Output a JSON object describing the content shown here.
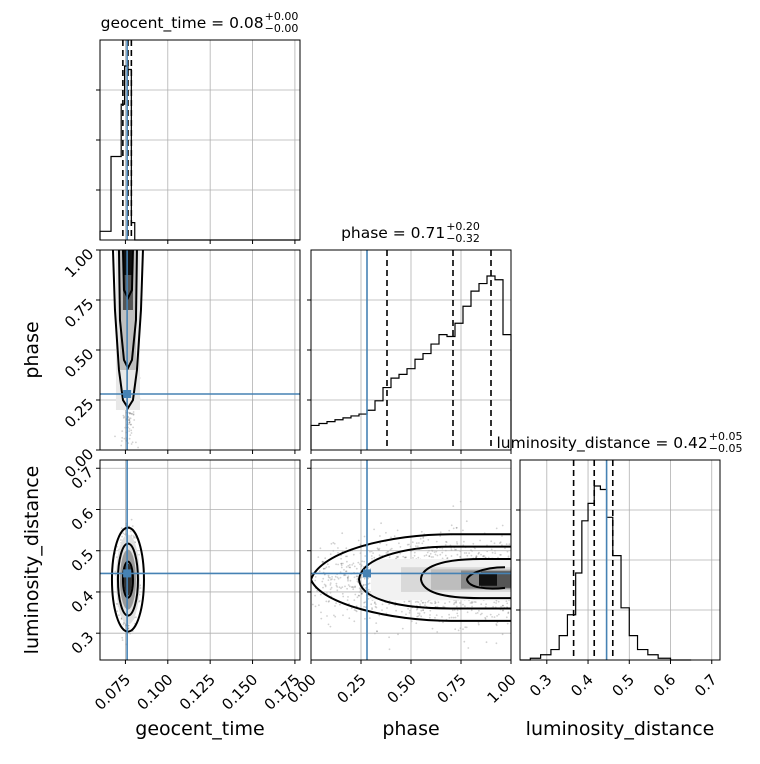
{
  "chart_data": {
    "type": "corner",
    "parameters": [
      "geocent_time",
      "phase",
      "luminosity_distance"
    ],
    "truths": {
      "geocent_time": 0.076,
      "phase": 0.28,
      "luminosity_distance": 0.445
    },
    "titles": [
      {
        "param": "geocent_time",
        "text": "geocent_time = 0.08",
        "sup": "+0.00",
        "sub": "−0.00"
      },
      {
        "param": "phase",
        "text": "phase = 0.71",
        "sup": "+0.20",
        "sub": "−0.32"
      },
      {
        "param": "luminosity_distance",
        "text": "luminosity_distance = 0.42",
        "sup": "+0.05",
        "sub": "−0.05"
      }
    ],
    "quantiles": {
      "geocent_time": [
        0.0735,
        0.0765,
        0.0785
      ],
      "phase": [
        0.38,
        0.71,
        0.9
      ],
      "luminosity_distance": [
        0.365,
        0.415,
        0.46
      ]
    },
    "axes": {
      "geocent_time": {
        "range": [
          0.06,
          0.178
        ],
        "ticks": [
          "0.075",
          "0.100",
          "0.125",
          "0.150",
          "0.175"
        ],
        "tickvals": [
          0.075,
          0.1,
          0.125,
          0.15,
          0.175
        ]
      },
      "phase": {
        "range": [
          0.0,
          1.0
        ],
        "ticks": [
          "0.00",
          "0.25",
          "0.50",
          "0.75",
          "1.00"
        ],
        "tickvals": [
          0,
          0.25,
          0.5,
          0.75,
          1.0
        ]
      },
      "luminosity_distance": {
        "range": [
          0.235,
          0.72
        ],
        "ticks": [
          "0.3",
          "0.4",
          "0.5",
          "0.6",
          "0.7"
        ],
        "tickvals": [
          0.3,
          0.4,
          0.5,
          0.6,
          0.7
        ]
      }
    },
    "histograms": {
      "geocent_time": {
        "bin_edges": [
          0.06,
          0.0665,
          0.0725,
          0.0745,
          0.0765,
          0.0785,
          0.0805,
          0.178
        ],
        "counts": [
          0.05,
          0.48,
          0.78,
          1.0,
          0.98,
          0.1,
          0.0
        ]
      },
      "phase": {
        "bin_edges": [
          0.0,
          0.04,
          0.08,
          0.12,
          0.16,
          0.2,
          0.24,
          0.28,
          0.32,
          0.36,
          0.4,
          0.44,
          0.48,
          0.52,
          0.56,
          0.6,
          0.64,
          0.68,
          0.72,
          0.76,
          0.8,
          0.84,
          0.88,
          0.92,
          0.96,
          1.0
        ],
        "counts": [
          0.13,
          0.14,
          0.15,
          0.16,
          0.17,
          0.18,
          0.19,
          0.21,
          0.26,
          0.33,
          0.38,
          0.4,
          0.43,
          0.48,
          0.51,
          0.56,
          0.61,
          0.6,
          0.67,
          0.76,
          0.84,
          0.88,
          0.92,
          0.9,
          0.61
        ]
      },
      "luminosity_distance": {
        "bin_edges": [
          0.235,
          0.26,
          0.285,
          0.31,
          0.33,
          0.35,
          0.37,
          0.385,
          0.4,
          0.415,
          0.43,
          0.445,
          0.46,
          0.48,
          0.5,
          0.52,
          0.545,
          0.57,
          0.6,
          0.65
        ],
        "counts": [
          0.0,
          0.01,
          0.03,
          0.06,
          0.14,
          0.26,
          0.5,
          0.8,
          0.9,
          1.0,
          0.98,
          0.82,
          0.6,
          0.3,
          0.14,
          0.06,
          0.03,
          0.01,
          0.0
        ]
      }
    }
  }
}
